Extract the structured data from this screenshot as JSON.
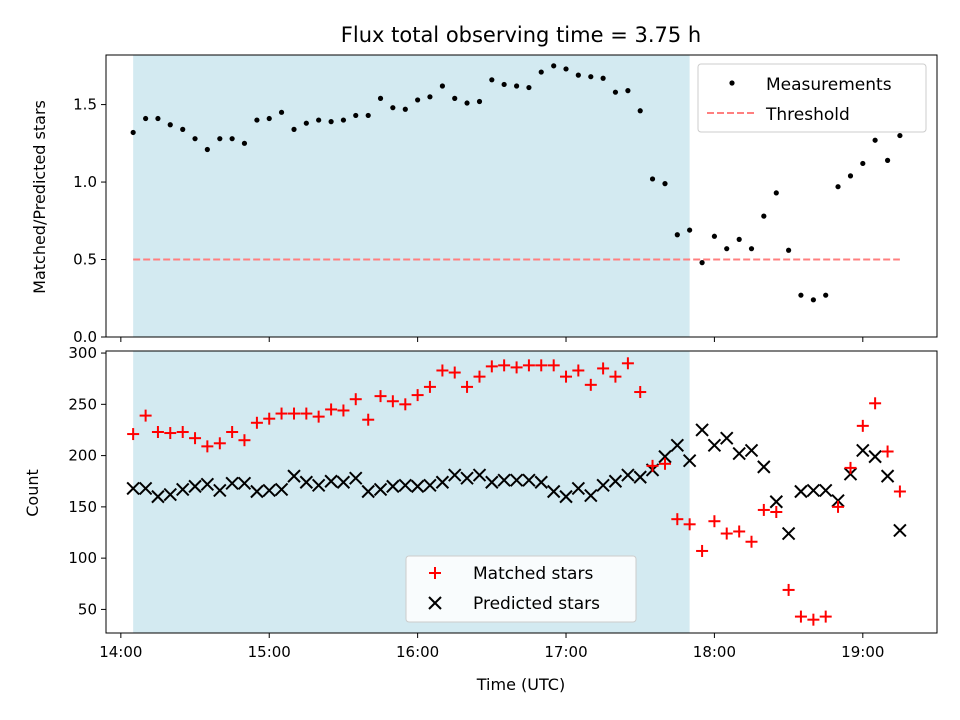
{
  "chart_data": [
    {
      "type": "scatter",
      "title": "Flux total observing time = 3.75 h",
      "xlabel": "",
      "ylabel": "Matched/Predicted stars",
      "xlim": [
        13.9,
        19.5
      ],
      "ylim": [
        0,
        1.82
      ],
      "yticks": [
        0,
        0.5,
        1.0,
        1.5
      ],
      "ytick_labels": [
        "0.0",
        "0.5",
        "1.0",
        "1.5"
      ],
      "xticks": [
        14,
        15,
        16,
        17,
        18,
        19
      ],
      "shaded_region": {
        "x_start": 14.083,
        "x_end": 17.833,
        "color": "#d3eaf1"
      },
      "legend": {
        "placement": "top-right",
        "entries": [
          "Measurements",
          "Threshold"
        ]
      },
      "threshold": {
        "name": "Threshold",
        "y": 0.5,
        "x_start": 14.083,
        "x_end": 19.25,
        "color": "#ff7f7f"
      },
      "series": [
        {
          "name": "Measurements",
          "color": "#000000",
          "x": [
            14.083,
            14.167,
            14.25,
            14.333,
            14.417,
            14.5,
            14.583,
            14.667,
            14.75,
            14.833,
            14.917,
            15.0,
            15.083,
            15.167,
            15.25,
            15.333,
            15.417,
            15.5,
            15.583,
            15.667,
            15.75,
            15.833,
            15.917,
            16.0,
            16.083,
            16.167,
            16.25,
            16.333,
            16.417,
            16.5,
            16.583,
            16.667,
            16.75,
            16.833,
            16.917,
            17.0,
            17.083,
            17.167,
            17.25,
            17.333,
            17.417,
            17.5,
            17.583,
            17.667,
            17.75,
            17.833,
            17.917,
            18.0,
            18.083,
            18.167,
            18.25,
            18.333,
            18.417,
            18.5,
            18.583,
            18.667,
            18.75,
            18.833,
            18.917,
            19.0,
            19.083,
            19.167,
            19.25
          ],
          "y": [
            1.32,
            1.41,
            1.41,
            1.37,
            1.34,
            1.28,
            1.21,
            1.28,
            1.28,
            1.25,
            1.4,
            1.41,
            1.45,
            1.34,
            1.38,
            1.4,
            1.39,
            1.4,
            1.43,
            1.43,
            1.54,
            1.48,
            1.47,
            1.53,
            1.55,
            1.62,
            1.54,
            1.51,
            1.52,
            1.66,
            1.63,
            1.62,
            1.61,
            1.71,
            1.75,
            1.73,
            1.69,
            1.68,
            1.67,
            1.58,
            1.59,
            1.46,
            1.02,
            0.99,
            0.66,
            0.69,
            0.48,
            0.65,
            0.57,
            0.63,
            0.57,
            0.78,
            0.93,
            0.56,
            0.27,
            0.24,
            0.27,
            0.97,
            1.04,
            1.12,
            1.27,
            1.14,
            1.3
          ]
        }
      ]
    },
    {
      "type": "scatter",
      "title": "",
      "xlabel": "Time (UTC)",
      "ylabel": "Count",
      "xlim": [
        13.9,
        19.5
      ],
      "ylim": [
        27,
        302
      ],
      "yticks": [
        50,
        100,
        150,
        200,
        250,
        300
      ],
      "ytick_labels": [
        "50",
        "100",
        "150",
        "200",
        "250",
        "300"
      ],
      "xticks": [
        14,
        15,
        16,
        17,
        18,
        19
      ],
      "xtick_labels": [
        "14:00",
        "15:00",
        "16:00",
        "17:00",
        "18:00",
        "19:00"
      ],
      "shaded_region": {
        "x_start": 14.083,
        "x_end": 17.833,
        "color": "#d3eaf1"
      },
      "legend": {
        "placement": "bottom-center",
        "entries": [
          "Matched stars",
          "Predicted stars"
        ]
      },
      "x": [
        14.083,
        14.167,
        14.25,
        14.333,
        14.417,
        14.5,
        14.583,
        14.667,
        14.75,
        14.833,
        14.917,
        15.0,
        15.083,
        15.167,
        15.25,
        15.333,
        15.417,
        15.5,
        15.583,
        15.667,
        15.75,
        15.833,
        15.917,
        16.0,
        16.083,
        16.167,
        16.25,
        16.333,
        16.417,
        16.5,
        16.583,
        16.667,
        16.75,
        16.833,
        16.917,
        17.0,
        17.083,
        17.167,
        17.25,
        17.333,
        17.417,
        17.5,
        17.583,
        17.667,
        17.75,
        17.833,
        17.917,
        18.0,
        18.083,
        18.167,
        18.25,
        18.333,
        18.417,
        18.5,
        18.583,
        18.667,
        18.75,
        18.833,
        18.917,
        19.0,
        19.083,
        19.167,
        19.25
      ],
      "series": [
        {
          "name": "Matched stars",
          "marker": "plus",
          "color": "#ff0000",
          "values": [
            221,
            239,
            223,
            222,
            223,
            217,
            209,
            212,
            223,
            215,
            232,
            236,
            241,
            241,
            241,
            238,
            245,
            244,
            255,
            235,
            258,
            253,
            250,
            259,
            267,
            283,
            281,
            267,
            277,
            287,
            288,
            286,
            288,
            288,
            288,
            277,
            283,
            269,
            285,
            277,
            290,
            262,
            190,
            192,
            138,
            133,
            107,
            136,
            124,
            126,
            116,
            147,
            145,
            69,
            43,
            40,
            43,
            150,
            188,
            229,
            251,
            204,
            165
          ]
        },
        {
          "name": "Predicted stars",
          "marker": "x",
          "color": "#000000",
          "values": [
            168,
            168,
            160,
            162,
            167,
            170,
            172,
            166,
            173,
            173,
            165,
            166,
            167,
            180,
            174,
            171,
            175,
            174,
            178,
            165,
            167,
            170,
            171,
            170,
            171,
            174,
            181,
            178,
            181,
            174,
            176,
            176,
            176,
            174,
            165,
            160,
            168,
            161,
            171,
            175,
            181,
            179,
            186,
            199,
            210,
            195,
            225,
            210,
            217,
            202,
            205,
            189,
            155,
            124,
            165,
            166,
            166,
            156,
            182,
            205,
            199,
            180,
            127
          ]
        }
      ]
    }
  ]
}
